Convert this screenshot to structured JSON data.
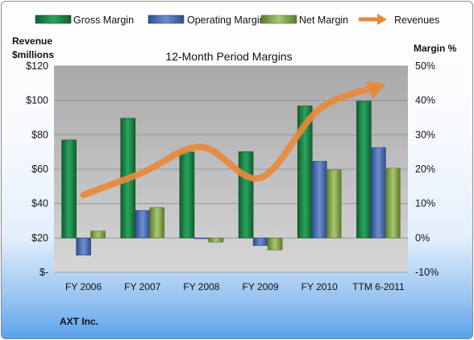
{
  "chart_data": {
    "type": "bar",
    "title": "12-Month Period Margins",
    "company": "AXT Inc.",
    "categories": [
      "FY 2006",
      "FY 2007",
      "FY 2008",
      "FY 2009",
      "FY 2010",
      "TTM 6-2011"
    ],
    "left_axis": {
      "label_line1": "Revenue",
      "label_line2": "$millions",
      "ylim": [
        0,
        120
      ],
      "ticks": [
        "$-",
        "$20",
        "$40",
        "$60",
        "$80",
        "$100",
        "$120"
      ]
    },
    "right_axis": {
      "label": "Margin %",
      "ylim": [
        -10,
        50
      ],
      "ticks": [
        "-10%",
        "0%",
        "10%",
        "20%",
        "30%",
        "40%",
        "50%"
      ]
    },
    "series": [
      {
        "name": "Gross Margin",
        "axis": "right",
        "kind": "bar",
        "color": "#1f8a4c",
        "values": [
          28.5,
          34.8,
          25.0,
          25.1,
          38.4,
          39.8
        ]
      },
      {
        "name": "Operating Margin",
        "axis": "right",
        "kind": "bar",
        "color": "#4a6fb5",
        "values": [
          -5.0,
          8.0,
          -0.2,
          -2.2,
          22.3,
          26.3
        ]
      },
      {
        "name": "Net Margin",
        "axis": "right",
        "kind": "bar",
        "color": "#8aad55",
        "values": [
          2.0,
          8.8,
          -1.2,
          -3.5,
          19.8,
          20.3
        ]
      },
      {
        "name": "Revenues",
        "axis": "left",
        "kind": "line",
        "color": "#e8893a",
        "values": [
          45,
          58,
          73,
          55,
          95,
          108
        ]
      }
    ],
    "grid": true,
    "legend_position": "top"
  }
}
